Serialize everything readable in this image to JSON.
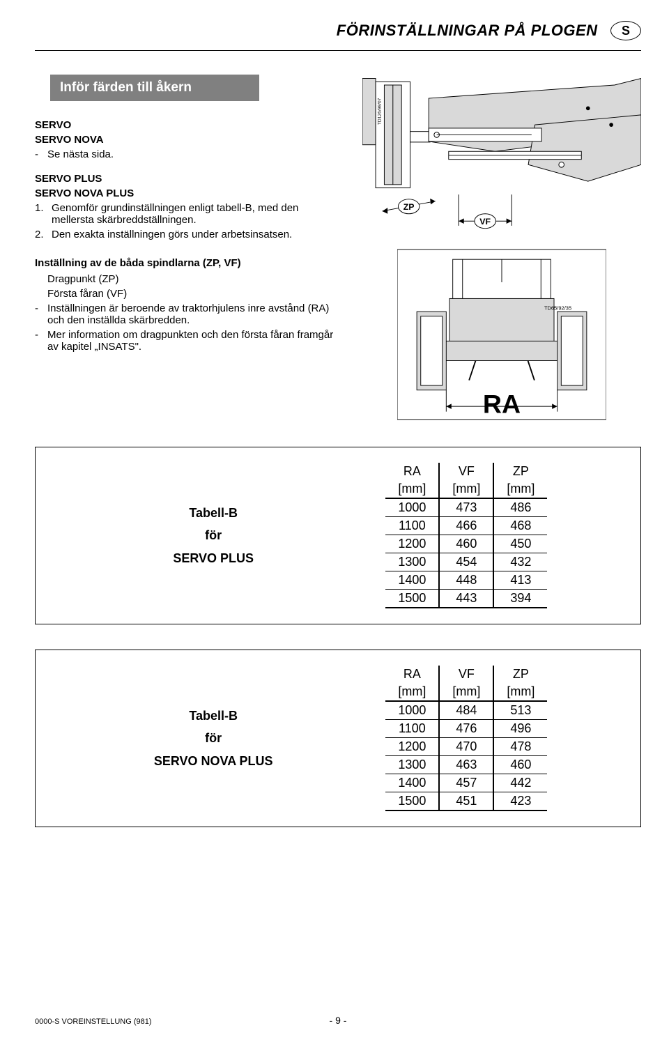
{
  "header": {
    "title": "FÖRINSTÄLLNINGAR PÅ PLOGEN",
    "lang_code": "S"
  },
  "section_banner": "Inför färden till åkern",
  "intro": {
    "line1": "SERVO",
    "line2": "SERVO NOVA",
    "line3_bullet": "-",
    "line3_text": "Se nästa sida."
  },
  "plus_block": {
    "line1": "SERVO PLUS",
    "line2": "SERVO NOVA PLUS",
    "item1_num": "1.",
    "item1_text": "Genomför grundinställningen enligt tabell-B, med den mellersta skärbreddställningen.",
    "item2_num": "2.",
    "item2_text": "Den exakta inställningen görs under arbetsinsatsen."
  },
  "instr": {
    "heading": "Inställning av de båda spindlarna (ZP, VF)",
    "sub1": "Dragpunkt (ZP)",
    "sub2": "Första fåran (VF)",
    "b1_dash": "-",
    "b1_text": "Inställningen är beroende av traktorhjulens inre avstånd (RA) och den inställda skärbredden.",
    "b2_dash": "-",
    "b2_text": "Mer information om dragpunkten och den första fåran framgår av kapitel „INSATS\"."
  },
  "diagram_labels": {
    "plow_ref": "TD126/98/07",
    "zp": "ZP",
    "vf": "VF",
    "tractor_ref": "TD65/92/35",
    "ra": "RA"
  },
  "tables": {
    "headers": {
      "c1": "RA",
      "c2": "VF",
      "c3": "ZP",
      "unit": "[mm]"
    },
    "servo_plus": {
      "title_l1": "Tabell-B",
      "title_l2": "för",
      "title_l3": "SERVO PLUS",
      "rows": [
        [
          "1000",
          "473",
          "486"
        ],
        [
          "1100",
          "466",
          "468"
        ],
        [
          "1200",
          "460",
          "450"
        ],
        [
          "1300",
          "454",
          "432"
        ],
        [
          "1400",
          "448",
          "413"
        ],
        [
          "1500",
          "443",
          "394"
        ]
      ]
    },
    "servo_nova_plus": {
      "title_l1": "Tabell-B",
      "title_l2": "för",
      "title_l3": "SERVO NOVA PLUS",
      "rows": [
        [
          "1000",
          "484",
          "513"
        ],
        [
          "1100",
          "476",
          "496"
        ],
        [
          "1200",
          "470",
          "478"
        ],
        [
          "1300",
          "463",
          "460"
        ],
        [
          "1400",
          "457",
          "442"
        ],
        [
          "1500",
          "451",
          "423"
        ]
      ]
    }
  },
  "footer": {
    "doc_code": "0000-S VOREINSTELLUNG (981)",
    "page": "- 9 -"
  },
  "colors": {
    "banner_bg": "#808080",
    "banner_fg": "#ffffff",
    "diagram_fill": "#d9d9d9",
    "text": "#000000",
    "page_bg": "#ffffff"
  }
}
